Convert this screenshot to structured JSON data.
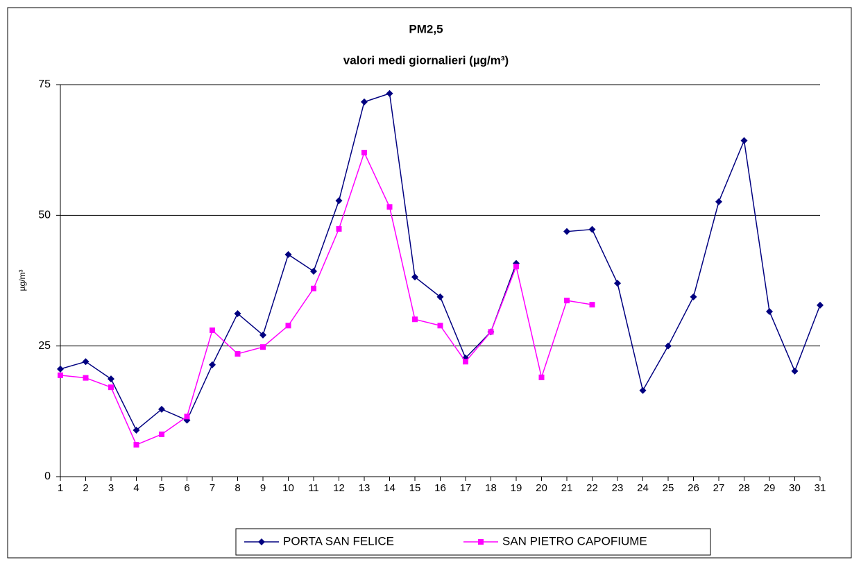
{
  "chart_data": {
    "type": "line",
    "title": "PM2,5",
    "subtitle": "valori medi giornalieri (µg/m³)",
    "y_label": "µg/m³",
    "categories": [
      "1",
      "2",
      "3",
      "4",
      "5",
      "6",
      "7",
      "8",
      "9",
      "10",
      "11",
      "12",
      "13",
      "14",
      "15",
      "16",
      "17",
      "18",
      "19",
      "20",
      "21",
      "22",
      "23",
      "24",
      "25",
      "26",
      "27",
      "28",
      "29",
      "30",
      "31"
    ],
    "series": [
      {
        "name": "PORTA SAN FELICE",
        "color": "#000080",
        "marker": "diamond",
        "values": [
          20.6,
          22.0,
          18.7,
          8.9,
          12.9,
          10.8,
          21.4,
          31.2,
          27.1,
          42.5,
          39.3,
          52.8,
          71.7,
          73.3,
          38.2,
          34.4,
          22.7,
          27.7,
          40.8,
          null,
          46.9,
          47.3,
          37.0,
          16.5,
          25.0,
          34.4,
          52.6,
          64.3,
          31.6,
          20.2,
          32.8
        ]
      },
      {
        "name": "SAN PIETRO CAPOFIUME",
        "color": "#ff00ff",
        "marker": "square",
        "values": [
          19.4,
          18.9,
          17.1,
          6.1,
          8.1,
          11.5,
          28.0,
          23.5,
          24.8,
          28.9,
          36.0,
          47.4,
          62.0,
          51.6,
          30.1,
          28.9,
          22.0,
          27.7,
          40.2,
          19.0,
          33.7,
          32.9,
          null,
          null,
          null,
          null,
          null,
          null,
          null,
          null,
          null
        ]
      }
    ],
    "ylim": [
      0,
      75
    ],
    "yticks": [
      0,
      25,
      50,
      75
    ],
    "grid": true,
    "legend": "bottom"
  }
}
